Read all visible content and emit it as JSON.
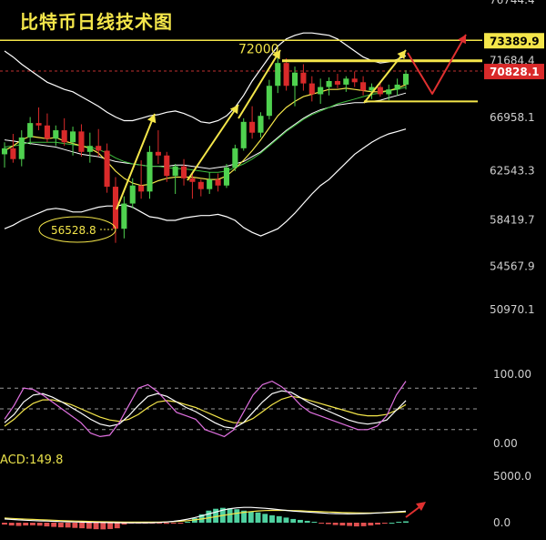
{
  "chart_data": {
    "type": "candlestick",
    "title": "比特币日线技术图",
    "price_axis": {
      "ticks": [
        "76744.4",
        "71684.4",
        "66958.1",
        "62543.3",
        "58419.7",
        "54567.9",
        "50970.1"
      ]
    },
    "price_markers": [
      {
        "label": "73389.9",
        "value": 73389.9,
        "style": "highlight",
        "color": "#f4e64a"
      },
      {
        "label": "70828.1",
        "value": 70828.1,
        "style": "current",
        "color": "#d92a2a"
      }
    ],
    "annotations": {
      "high_label": "72000",
      "low_label": "56528.8",
      "low_value": 56528.8,
      "high_value": 72000
    },
    "levels": [
      {
        "name": "resistance",
        "value": 71684.4
      },
      {
        "name": "support",
        "value": 68300
      }
    ],
    "candles": [
      {
        "o": 63900,
        "h": 64900,
        "l": 62800,
        "c": 64400
      },
      {
        "o": 64400,
        "h": 65600,
        "l": 63200,
        "c": 63500
      },
      {
        "o": 63500,
        "h": 65900,
        "l": 62900,
        "c": 65300
      },
      {
        "o": 65300,
        "h": 67000,
        "l": 64700,
        "c": 66500
      },
      {
        "o": 66500,
        "h": 67800,
        "l": 65900,
        "c": 66300
      },
      {
        "o": 66300,
        "h": 67300,
        "l": 64900,
        "c": 65200
      },
      {
        "o": 65200,
        "h": 66300,
        "l": 64600,
        "c": 65900
      },
      {
        "o": 65900,
        "h": 66900,
        "l": 64600,
        "c": 64900
      },
      {
        "o": 64900,
        "h": 66200,
        "l": 63800,
        "c": 65800
      },
      {
        "o": 65800,
        "h": 66400,
        "l": 63700,
        "c": 64100
      },
      {
        "o": 64100,
        "h": 65700,
        "l": 63200,
        "c": 64600
      },
      {
        "o": 64600,
        "h": 66000,
        "l": 63700,
        "c": 64200
      },
      {
        "o": 64200,
        "h": 64800,
        "l": 60700,
        "c": 61200
      },
      {
        "o": 61200,
        "h": 62000,
        "l": 56528.8,
        "c": 57700
      },
      {
        "o": 57700,
        "h": 60400,
        "l": 56900,
        "c": 59800
      },
      {
        "o": 59800,
        "h": 61900,
        "l": 59400,
        "c": 61300
      },
      {
        "o": 61300,
        "h": 63400,
        "l": 60200,
        "c": 60800
      },
      {
        "o": 60800,
        "h": 64600,
        "l": 60200,
        "c": 64100
      },
      {
        "o": 64100,
        "h": 65900,
        "l": 63100,
        "c": 63800
      },
      {
        "o": 63800,
        "h": 64100,
        "l": 61600,
        "c": 62100
      },
      {
        "o": 62100,
        "h": 63100,
        "l": 60600,
        "c": 62900
      },
      {
        "o": 62900,
        "h": 63500,
        "l": 61300,
        "c": 61900
      },
      {
        "o": 61900,
        "h": 62400,
        "l": 60200,
        "c": 61600
      },
      {
        "o": 61600,
        "h": 61800,
        "l": 60400,
        "c": 61000
      },
      {
        "o": 61000,
        "h": 62400,
        "l": 60600,
        "c": 61800
      },
      {
        "o": 61800,
        "h": 62300,
        "l": 60800,
        "c": 61300
      },
      {
        "o": 61300,
        "h": 63100,
        "l": 61100,
        "c": 62800
      },
      {
        "o": 62800,
        "h": 64700,
        "l": 62500,
        "c": 64400
      },
      {
        "o": 64400,
        "h": 66900,
        "l": 64200,
        "c": 66600
      },
      {
        "o": 66600,
        "h": 67900,
        "l": 65200,
        "c": 65700
      },
      {
        "o": 65700,
        "h": 67400,
        "l": 65300,
        "c": 67100
      },
      {
        "o": 67100,
        "h": 70100,
        "l": 66800,
        "c": 69600
      },
      {
        "o": 69600,
        "h": 72000,
        "l": 69000,
        "c": 71500
      },
      {
        "o": 71500,
        "h": 71900,
        "l": 69200,
        "c": 69600
      },
      {
        "o": 69600,
        "h": 71200,
        "l": 67900,
        "c": 70700
      },
      {
        "o": 70700,
        "h": 71400,
        "l": 69200,
        "c": 69800
      },
      {
        "o": 69800,
        "h": 70400,
        "l": 68300,
        "c": 68900
      },
      {
        "o": 68900,
        "h": 70200,
        "l": 68100,
        "c": 69500
      },
      {
        "o": 69500,
        "h": 70300,
        "l": 68800,
        "c": 70000
      },
      {
        "o": 70000,
        "h": 70600,
        "l": 69400,
        "c": 69700
      },
      {
        "o": 69700,
        "h": 70400,
        "l": 69100,
        "c": 70200
      },
      {
        "o": 70200,
        "h": 70800,
        "l": 69500,
        "c": 69900
      },
      {
        "o": 69900,
        "h": 70400,
        "l": 68800,
        "c": 69200
      },
      {
        "o": 69200,
        "h": 69800,
        "l": 68500,
        "c": 69500
      },
      {
        "o": 69500,
        "h": 69900,
        "l": 68700,
        "c": 68900
      },
      {
        "o": 68900,
        "h": 69700,
        "l": 68400,
        "c": 69300
      },
      {
        "o": 69300,
        "h": 70200,
        "l": 68800,
        "c": 69700
      },
      {
        "o": 69700,
        "h": 70900,
        "l": 69300,
        "c": 70600
      }
    ],
    "bollinger": {
      "upper": [
        72500,
        72000,
        71400,
        70900,
        70400,
        69900,
        69600,
        69300,
        69100,
        68700,
        68300,
        67900,
        67400,
        67000,
        66700,
        66700,
        66900,
        67100,
        67200,
        67400,
        67500,
        67300,
        67000,
        66600,
        66500,
        66700,
        67100,
        67800,
        68800,
        70000,
        71000,
        72000,
        72900,
        73500,
        73800,
        74000,
        74000,
        73900,
        73800,
        73500,
        73000,
        72500,
        72000,
        71700,
        71500,
        71600,
        71800,
        72100
      ],
      "middle": [
        65100,
        65000,
        64900,
        64800,
        64700,
        64600,
        64500,
        64300,
        64100,
        63900,
        63800,
        63700,
        63500,
        63300,
        63200,
        63100,
        63000,
        62900,
        62900,
        62900,
        63000,
        63000,
        62900,
        62800,
        62700,
        62800,
        62900,
        63100,
        63300,
        63700,
        64100,
        64700,
        65300,
        65900,
        66400,
        66900,
        67300,
        67600,
        67800,
        68000,
        68100,
        68200,
        68200,
        68300,
        68400,
        68600,
        68800,
        69000
      ],
      "lower": [
        57700,
        58000,
        58400,
        58700,
        59000,
        59300,
        59400,
        59300,
        59100,
        59100,
        59300,
        59500,
        59600,
        59600,
        59700,
        59500,
        59100,
        58700,
        58600,
        58400,
        58400,
        58600,
        58700,
        58800,
        58800,
        58900,
        58700,
        58400,
        57800,
        57400,
        57100,
        57400,
        57700,
        58300,
        59000,
        59800,
        60600,
        61300,
        61800,
        62500,
        63200,
        63900,
        64400,
        64900,
        65300,
        65600,
        65800,
        66000
      ],
      "ma_short": [
        64200,
        64600,
        65100,
        65400,
        65300,
        65200,
        65300,
        65000,
        64800,
        64600,
        64400,
        64000,
        63300,
        62500,
        61900,
        61500,
        61300,
        61400,
        61700,
        61900,
        62000,
        62000,
        62000,
        61900,
        61800,
        61800,
        62100,
        62700,
        63400,
        64200,
        65100,
        66100,
        67100,
        67800,
        68300,
        68700,
        68900,
        69100,
        69300,
        69300,
        69400,
        69300,
        69200,
        69100,
        69100,
        69200,
        69400,
        69700
      ],
      "ma_long": [
        64500,
        64600,
        64700,
        64900,
        64900,
        64900,
        64900,
        64800,
        64700,
        64600,
        64500,
        64300,
        64000,
        63600,
        63300,
        63100,
        63000,
        62900,
        62900,
        62800,
        62700,
        62700,
        62600,
        62500,
        62400,
        62400,
        62500,
        62800,
        63100,
        63500,
        64000,
        64600,
        65200,
        65800,
        66300,
        66800,
        67200,
        67500,
        67800,
        68100,
        68300,
        68500,
        68700,
        68900,
        69000,
        69200,
        69300,
        69500
      ]
    },
    "oscillator": {
      "ticks": [
        "100.00",
        "0.00"
      ],
      "ylim": [
        0,
        100
      ],
      "levels": [
        80,
        50,
        20
      ],
      "k": [
        35,
        55,
        80,
        78,
        70,
        60,
        50,
        40,
        30,
        15,
        10,
        12,
        30,
        55,
        80,
        85,
        75,
        60,
        45,
        40,
        35,
        20,
        15,
        10,
        20,
        45,
        70,
        85,
        90,
        82,
        70,
        55,
        45,
        40,
        35,
        30,
        25,
        20,
        20,
        25,
        40,
        70,
        90
      ],
      "d": [
        30,
        42,
        60,
        70,
        72,
        67,
        60,
        52,
        44,
        35,
        28,
        25,
        28,
        40,
        55,
        68,
        72,
        68,
        60,
        52,
        46,
        38,
        30,
        24,
        22,
        30,
        45,
        60,
        72,
        76,
        74,
        66,
        58,
        52,
        46,
        40,
        34,
        30,
        28,
        30,
        34,
        48,
        62
      ],
      "j": [
        25,
        35,
        48,
        58,
        63,
        63,
        60,
        56,
        50,
        44,
        38,
        34,
        32,
        35,
        42,
        52,
        60,
        62,
        60,
        56,
        52,
        46,
        40,
        34,
        30,
        30,
        36,
        46,
        56,
        64,
        68,
        66,
        62,
        58,
        54,
        50,
        46,
        42,
        40,
        40,
        42,
        48,
        56
      ]
    },
    "macd": {
      "label": "ACD:149.8",
      "ticks": [
        "5000.0",
        "0.0"
      ],
      "ylim": [
        -1000,
        6000
      ],
      "hist": [
        -200,
        -300,
        -350,
        -300,
        -280,
        -320,
        -400,
        -450,
        -500,
        -520,
        -560,
        -600,
        -650,
        -700,
        -720,
        -680,
        -600,
        -200,
        -80,
        -50,
        -60,
        -80,
        -100,
        -120,
        -100,
        -80,
        100,
        500,
        900,
        1300,
        1500,
        1600,
        1550,
        1450,
        1300,
        1200,
        1100,
        950,
        800,
        700,
        550,
        400,
        300,
        200,
        100,
        -50,
        -150,
        -250,
        -300,
        -350,
        -400,
        -380,
        -300,
        -200,
        -100,
        0,
        100,
        150
      ],
      "dif": [
        400,
        350,
        300,
        260,
        230,
        200,
        180,
        150,
        120,
        100,
        80,
        60,
        40,
        30,
        20,
        10,
        0,
        -10,
        -20,
        -20,
        -10,
        0,
        30,
        80,
        150,
        250,
        380,
        550,
        750,
        950,
        1150,
        1350,
        1500,
        1600,
        1650,
        1650,
        1600,
        1550,
        1480,
        1400,
        1320,
        1250,
        1200,
        1150,
        1100,
        1050,
        1000,
        980,
        960,
        950,
        960,
        980,
        1000,
        1050,
        1100,
        1150,
        1200,
        1250
      ],
      "dea": [
        500,
        460,
        420,
        380,
        350,
        320,
        290,
        260,
        230,
        200,
        180,
        160,
        140,
        120,
        100,
        90,
        80,
        70,
        60,
        55,
        55,
        60,
        70,
        90,
        120,
        160,
        220,
        300,
        400,
        520,
        650,
        780,
        900,
        1020,
        1120,
        1200,
        1260,
        1300,
        1320,
        1330,
        1320,
        1300,
        1280,
        1250,
        1220,
        1190,
        1160,
        1130,
        1100,
        1080,
        1060,
        1050,
        1050,
        1060,
        1080,
        1100,
        1130,
        1160
      ]
    }
  }
}
